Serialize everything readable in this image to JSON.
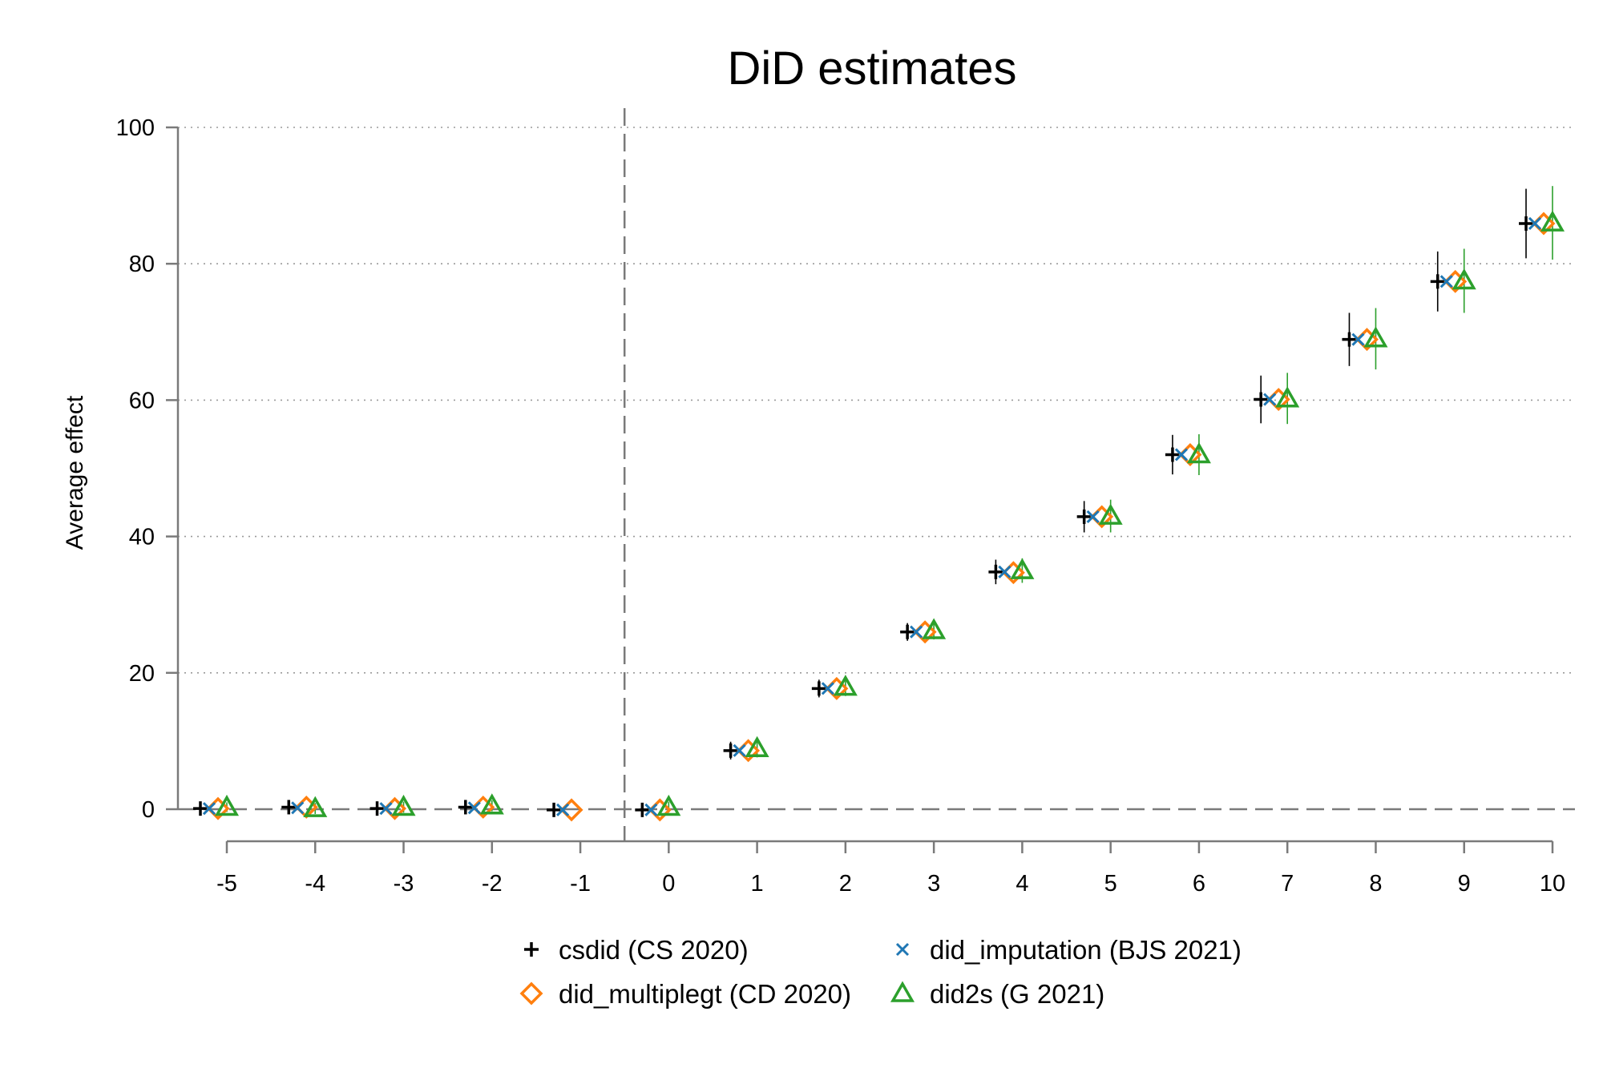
{
  "chart_data": {
    "type": "scatter",
    "title": "DiD estimates",
    "xlabel": "",
    "ylabel": "Average effect",
    "xlim": [
      -5,
      10
    ],
    "ylim": [
      0,
      100
    ],
    "xticks": [
      "-5",
      "-4",
      "-3",
      "-2",
      "-1",
      "0",
      "1",
      "2",
      "3",
      "4",
      "5",
      "6",
      "7",
      "8",
      "9",
      "10"
    ],
    "yticks": [
      "0",
      "20",
      "40",
      "60",
      "80",
      "100"
    ],
    "grid": true,
    "reference_lines": {
      "x": -0.5,
      "y": 0
    },
    "legend_position": "bottom",
    "series": [
      {
        "name": "csdid (CS 2020)",
        "marker": "plus",
        "color": "#000000",
        "x": [
          -5,
          -4,
          -3,
          -2,
          -1,
          0,
          1,
          2,
          3,
          4,
          5,
          6,
          7,
          8,
          9,
          10
        ],
        "y": [
          0.1,
          0.3,
          0.1,
          0.3,
          -0.1,
          -0.1,
          8.6,
          17.7,
          26.0,
          34.8,
          42.9,
          52.0,
          60.1,
          68.9,
          77.4,
          85.9
        ],
        "ci_low": [
          -0.6,
          -0.5,
          -0.7,
          -0.5,
          -0.9,
          -0.9,
          7.3,
          16.4,
          24.7,
          33.0,
          40.6,
          49.1,
          56.6,
          65.0,
          73.0,
          80.8
        ],
        "ci_high": [
          0.8,
          1.1,
          0.9,
          1.1,
          0.7,
          0.7,
          9.9,
          19.0,
          27.3,
          36.6,
          45.2,
          54.9,
          63.6,
          72.8,
          81.8,
          91.0
        ]
      },
      {
        "name": "did_imputation (BJS 2021)",
        "marker": "x",
        "color": "#1f77b4",
        "x": [
          -5,
          -4,
          -3,
          -2,
          -1,
          0,
          1,
          2,
          3,
          4,
          5,
          6,
          7,
          8,
          9,
          10
        ],
        "y": [
          0.1,
          0.2,
          0.1,
          0.2,
          -0.1,
          -0.1,
          8.6,
          17.7,
          26.0,
          34.8,
          42.9,
          52.0,
          60.1,
          68.9,
          77.4,
          85.9
        ]
      },
      {
        "name": "did_multiplegt (CD 2020)",
        "marker": "diamond",
        "color": "#ff7f0e",
        "x": [
          -5,
          -4,
          -3,
          -2,
          -1,
          0,
          1,
          2,
          3,
          4,
          5,
          6,
          7,
          8,
          9,
          10
        ],
        "y": [
          0.1,
          0.3,
          0.1,
          0.3,
          -0.1,
          -0.1,
          8.6,
          17.7,
          26.0,
          34.7,
          42.9,
          52.0,
          60.1,
          68.9,
          77.4,
          85.9
        ]
      },
      {
        "name": "did2s (G 2021)",
        "marker": "triangle",
        "color": "#2ca02c",
        "x": [
          -5,
          -4,
          -3,
          -2,
          0,
          1,
          2,
          3,
          4,
          5,
          6,
          7,
          8,
          9,
          10
        ],
        "y": [
          0.3,
          0.1,
          0.3,
          0.5,
          0.3,
          8.9,
          17.9,
          26.2,
          35.0,
          43.0,
          52.0,
          60.2,
          69.0,
          77.5,
          86.0
        ],
        "ci_low": [
          -0.4,
          -0.7,
          -0.5,
          -0.3,
          -0.5,
          7.6,
          16.6,
          24.9,
          33.2,
          40.6,
          49.0,
          56.5,
          64.5,
          72.8,
          80.6
        ],
        "ci_high": [
          1.0,
          0.9,
          1.1,
          1.3,
          1.1,
          10.2,
          19.2,
          27.5,
          36.8,
          45.4,
          55.0,
          64.0,
          73.5,
          82.2,
          91.4
        ]
      }
    ]
  }
}
